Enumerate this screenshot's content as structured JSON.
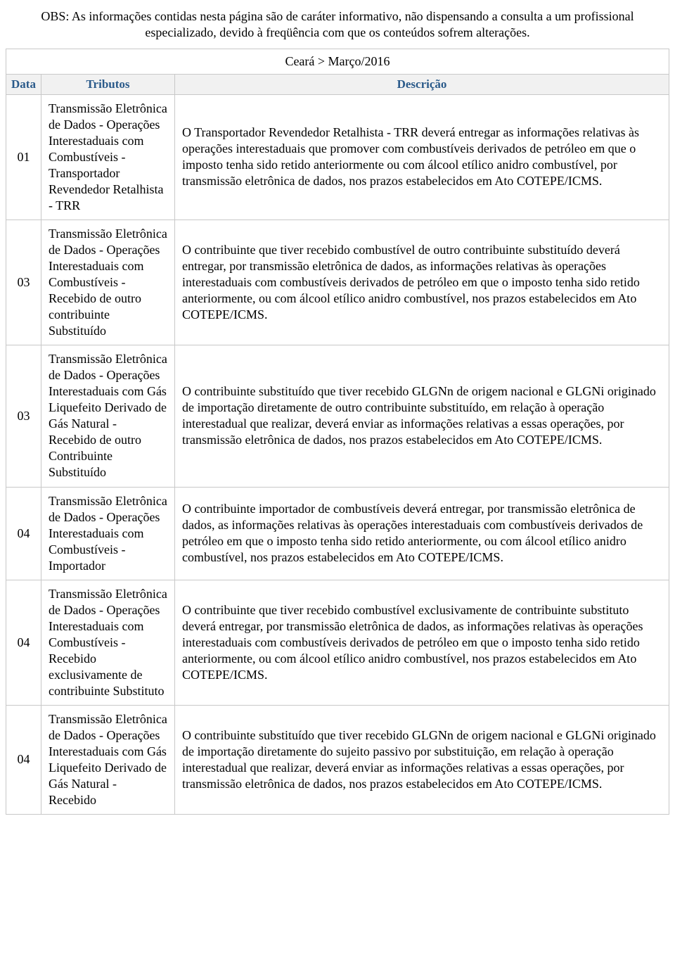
{
  "obs": "OBS: As informações contidas nesta página são de caráter informativo, não dispensando a consulta a um profissional especializado, devido à freqüência com que os conteúdos sofrem alterações.",
  "breadcrumb": "Ceará > Março/2016",
  "headers": {
    "data": "Data",
    "tributos": "Tributos",
    "descricao": "Descrição"
  },
  "rows": [
    {
      "data": "01",
      "tributo": "Transmissão Eletrônica de Dados - Operações Interestaduais com Combustíveis - Transportador Revendedor Retalhista - TRR",
      "descricao": "O Transportador Revendedor Retalhista - TRR deverá entregar as informações relativas às operações interestaduais que promover com combustíveis derivados de petróleo em que o imposto tenha sido retido anteriormente ou com álcool etílico anidro combustível, por transmissão eletrônica de dados, nos prazos estabelecidos em Ato COTEPE/ICMS."
    },
    {
      "data": "03",
      "tributo": "Transmissão Eletrônica de Dados - Operações Interestaduais com Combustíveis - Recebido de outro contribuinte Substituído",
      "descricao": "O contribuinte que tiver recebido combustível de outro contribuinte substituído deverá entregar, por transmissão eletrônica de dados, as informações relativas às operações interestaduais com combustíveis derivados de petróleo em que o imposto tenha sido retido anteriormente, ou com álcool etílico anidro combustível, nos prazos estabelecidos em Ato COTEPE/ICMS."
    },
    {
      "data": "03",
      "tributo": "Transmissão Eletrônica de Dados - Operações Interestaduais com Gás Liquefeito Derivado de Gás Natural - Recebido de outro Contribuinte Substituído",
      "descricao": "O contribuinte substituído que tiver recebido GLGNn de origem nacional e GLGNi originado de importação diretamente de outro contribuinte substituído, em relação à operação interestadual que realizar, deverá enviar as informações relativas a essas operações, por transmissão eletrônica de dados, nos prazos estabelecidos em Ato COTEPE/ICMS."
    },
    {
      "data": "04",
      "tributo": "Transmissão Eletrônica de Dados - Operações Interestaduais com Combustíveis - Importador",
      "descricao": "O contribuinte importador de combustíveis deverá entregar, por transmissão eletrônica de dados, as informações relativas às operações interestaduais com combustíveis derivados de petróleo em que o imposto tenha sido retido anteriormente, ou com álcool etílico anidro combustível, nos prazos estabelecidos em Ato COTEPE/ICMS."
    },
    {
      "data": "04",
      "tributo": "Transmissão Eletrônica de Dados - Operações Interestaduais com Combustíveis - Recebido exclusivamente de contribuinte Substituto",
      "descricao": "O contribuinte que tiver recebido combustível exclusivamente de contribuinte substituto deverá entregar, por transmissão eletrônica de dados, as informações relativas às operações interestaduais com combustíveis derivados de petróleo em que o imposto tenha sido retido anteriormente, ou com álcool etílico anidro combustível, nos prazos estabelecidos em Ato COTEPE/ICMS."
    },
    {
      "data": "04",
      "tributo": "Transmissão Eletrônica de Dados - Operações Interestaduais com Gás Liquefeito Derivado de Gás Natural - Recebido",
      "descricao": "O contribuinte substituído que tiver recebido GLGNn de origem nacional e GLGNi originado de importação diretamente do sujeito passivo por substituição, em relação à operação interestadual que realizar, deverá enviar as informações relativas a essas operações, por transmissão eletrônica de dados, nos prazos estabelecidos em Ato COTEPE/ICMS."
    }
  ]
}
